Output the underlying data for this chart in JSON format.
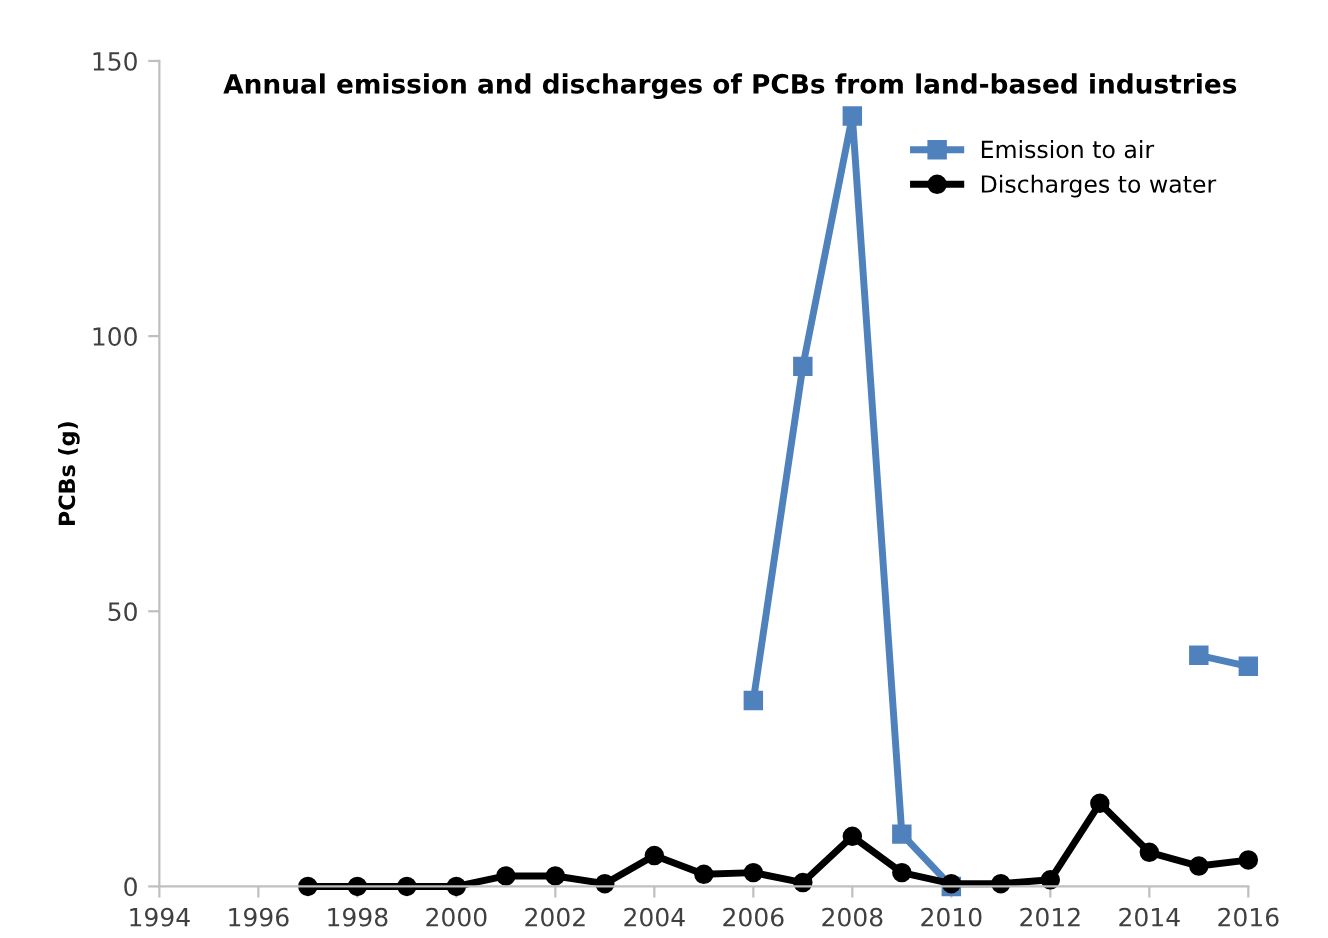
{
  "chart_data": {
    "type": "line",
    "title": "Annual emission and discharges of PCBs from land-based industries",
    "ylabel": "PCBs (g)",
    "x": [
      1997,
      1998,
      1999,
      2000,
      2001,
      2002,
      2003,
      2004,
      2005,
      2006,
      2007,
      2008,
      2009,
      2010,
      2011,
      2012,
      2013,
      2014,
      2015,
      2016
    ],
    "series": [
      {
        "name": "Emission to air",
        "color": "#4f81bd",
        "marker": "square",
        "values": [
          null,
          null,
          null,
          null,
          null,
          null,
          null,
          null,
          null,
          33.8,
          94.5,
          140,
          9.5,
          0,
          null,
          null,
          null,
          null,
          42,
          40
        ]
      },
      {
        "name": "Discharges to water",
        "color": "#000000",
        "marker": "circle",
        "values": [
          0,
          0,
          0,
          0,
          1.9,
          1.9,
          0.5,
          5.6,
          2.2,
          2.5,
          0.7,
          9.1,
          2.5,
          0.5,
          0.5,
          1.2,
          15.1,
          6.2,
          3.7,
          4.8
        ]
      }
    ],
    "xlim": [
      1994,
      2016
    ],
    "xticks": [
      1994,
      1996,
      1998,
      2000,
      2002,
      2004,
      2006,
      2008,
      2010,
      2012,
      2014,
      2016
    ],
    "ylim": [
      0,
      150
    ],
    "yticks": [
      0,
      50,
      100,
      150
    ],
    "grid": false,
    "legend": "top right"
  }
}
